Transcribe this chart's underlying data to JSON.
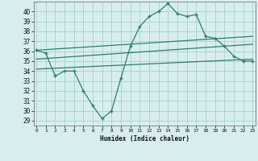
{
  "humidex_x": [
    0,
    1,
    2,
    3,
    4,
    5,
    6,
    7,
    8,
    9,
    10,
    11,
    12,
    13,
    14,
    15,
    16,
    17,
    18,
    19,
    20,
    21,
    22,
    23
  ],
  "humidex_y": [
    36.1,
    35.8,
    33.5,
    34.0,
    34.0,
    32.0,
    30.5,
    29.2,
    30.0,
    33.3,
    36.5,
    38.5,
    39.5,
    40.0,
    40.8,
    39.8,
    39.5,
    39.7,
    37.5,
    37.3,
    36.5,
    35.5,
    35.0,
    35.0
  ],
  "line1_x": [
    0,
    23
  ],
  "line1_y": [
    36.1,
    37.5
  ],
  "line2_x": [
    0,
    23
  ],
  "line2_y": [
    35.2,
    36.7
  ],
  "line3_x": [
    0,
    23
  ],
  "line3_y": [
    34.2,
    35.2
  ],
  "color": "#2d7d72",
  "bg_color": "#d8eeee",
  "grid_color": "#aad4d4",
  "xlabel": "Humidex (Indice chaleur)",
  "xticks": [
    0,
    1,
    2,
    3,
    4,
    5,
    6,
    7,
    8,
    9,
    10,
    11,
    12,
    13,
    14,
    15,
    16,
    17,
    18,
    19,
    20,
    21,
    22,
    23
  ],
  "yticks": [
    29,
    30,
    31,
    32,
    33,
    34,
    35,
    36,
    37,
    38,
    39,
    40
  ],
  "xlim": [
    -0.3,
    23.3
  ],
  "ylim": [
    28.5,
    41.0
  ]
}
